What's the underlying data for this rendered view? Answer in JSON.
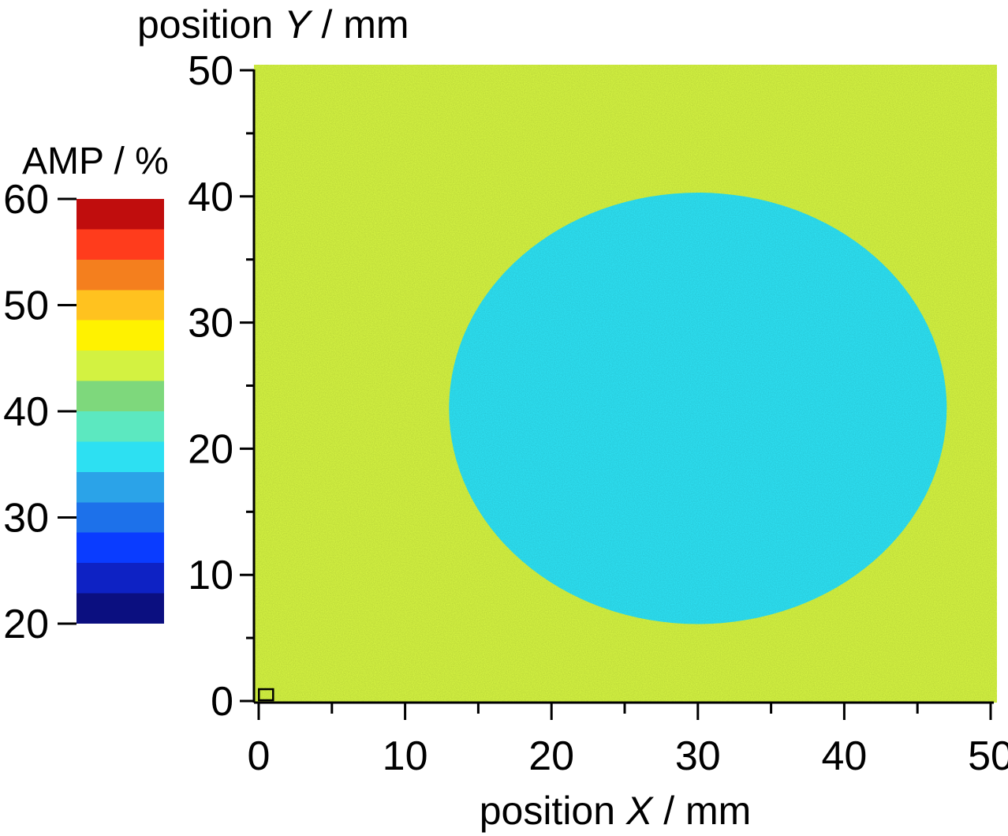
{
  "chart_data": {
    "type": "heatmap",
    "title": "",
    "xlabel": {
      "prefix": "position ",
      "symbol": "X",
      "suffix": " / mm"
    },
    "ylabel": {
      "prefix": "position ",
      "symbol": "Y",
      "suffix": " / mm"
    },
    "xlim": [
      0,
      50
    ],
    "ylim": [
      0,
      50
    ],
    "x_ticks": [
      "0",
      "10",
      "20",
      "30",
      "40",
      "50"
    ],
    "y_ticks": [
      "0",
      "10",
      "20",
      "30",
      "40",
      "50"
    ],
    "background_value": 44,
    "region": {
      "shape": "ellipse",
      "center_x": 30,
      "center_y": 23.2,
      "radius_x": 17,
      "radius_y": 17.1,
      "value": 35
    },
    "marker": {
      "x": 0.5,
      "y": 0.5,
      "shape": "square"
    },
    "colorbar": {
      "label": "AMP / %",
      "min": 20,
      "max": 60,
      "ticks": [
        "20",
        "30",
        "40",
        "50",
        "60"
      ],
      "colors": [
        "#0b0f80",
        "#0e22c4",
        "#0a3cff",
        "#1d71ea",
        "#2ba3e8",
        "#2de0f2",
        "#5ce8c0",
        "#7ed87c",
        "#d3f241",
        "#fff200",
        "#ffc21f",
        "#f47f1e",
        "#ff3c1c",
        "#c00d0d"
      ]
    }
  }
}
